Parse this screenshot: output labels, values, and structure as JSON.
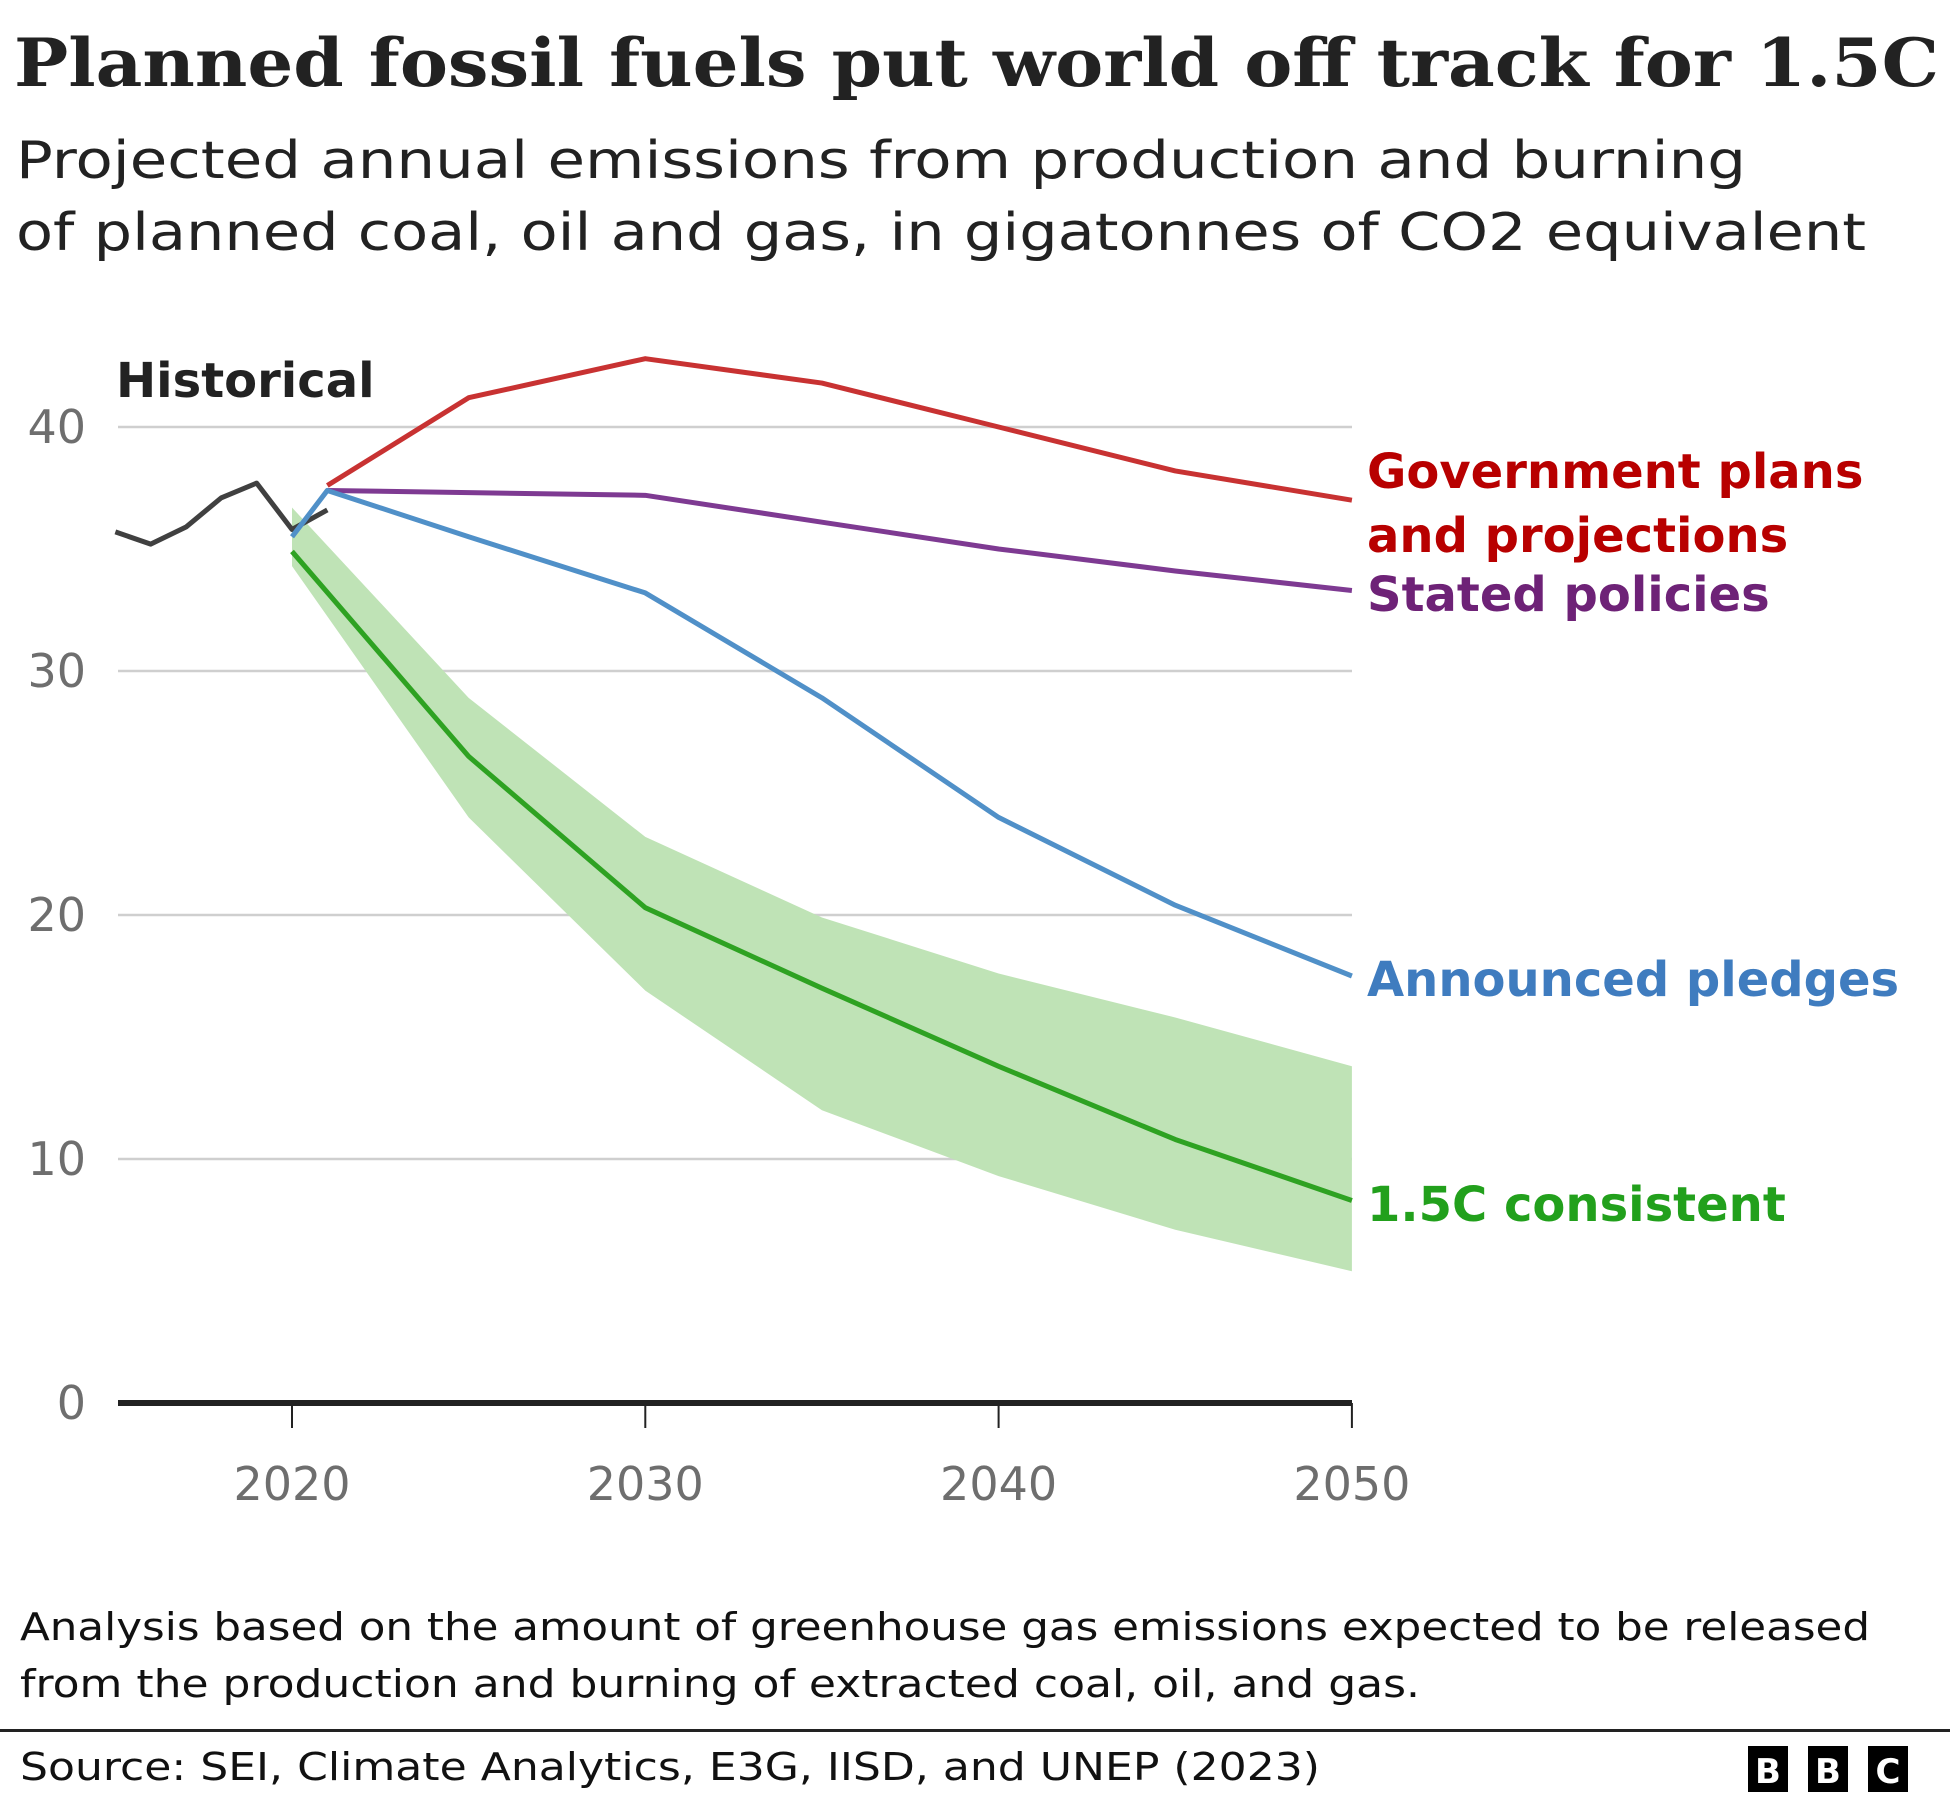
{
  "chart_data": {
    "type": "line",
    "title": "Planned fossil fuels put world off track for 1.5C",
    "subtitle": [
      "Projected annual emissions from production and burning",
      "of planned coal, oil and gas, in gigatonnes of CO2 equivalent"
    ],
    "xlabel": "",
    "ylabel": "",
    "xlim": [
      2015,
      2050
    ],
    "ylim": [
      0,
      43
    ],
    "xticks": [
      "2020",
      "2030",
      "2040",
      "2050"
    ],
    "yticks": [
      "0",
      "10",
      "20",
      "30",
      "40"
    ],
    "grid": true,
    "historical_label": "Historical",
    "series": [
      {
        "name": "Historical",
        "color": "#404040",
        "x": [
          2015,
          2016,
          2017,
          2018,
          2019,
          2020,
          2021
        ],
        "y": [
          35.7,
          35.2,
          35.9,
          37.1,
          37.7,
          35.8,
          36.6
        ]
      },
      {
        "name": "Government plans and projections",
        "label_lines": [
          "Government plans",
          "and projections"
        ],
        "color": "#c83232",
        "label_color": "#b80000",
        "x": [
          2021,
          2025,
          2030,
          2035,
          2040,
          2045,
          2050
        ],
        "y": [
          37.6,
          41.2,
          42.8,
          41.8,
          40.0,
          38.2,
          37.0
        ]
      },
      {
        "name": "Stated policies",
        "label_lines": [
          "Stated policies"
        ],
        "color": "#7e3a92",
        "label_color": "#6e2277",
        "x": [
          2021,
          2030,
          2035,
          2040,
          2045,
          2050
        ],
        "y": [
          37.4,
          37.2,
          36.1,
          35.0,
          34.1,
          33.3
        ]
      },
      {
        "name": "Announced pledges",
        "label_lines": [
          "Announced pledges"
        ],
        "color": "#5090c8",
        "label_color": "#3f7cbf",
        "x": [
          2020,
          2021,
          2025,
          2030,
          2035,
          2040,
          2045,
          2050
        ],
        "y": [
          35.5,
          37.4,
          35.5,
          33.2,
          28.9,
          24.0,
          20.4,
          17.5
        ]
      },
      {
        "name": "1.5C consistent",
        "label_lines": [
          "1.5C consistent"
        ],
        "color": "#2ea222",
        "label_color": "#22a01c",
        "x": [
          2020,
          2025,
          2030,
          2035,
          2040,
          2045,
          2050
        ],
        "y": [
          34.9,
          26.5,
          20.3,
          17.0,
          13.8,
          10.8,
          8.3
        ],
        "range": {
          "color": "#bfe3b6",
          "upper": [
            36.7,
            28.9,
            23.2,
            19.9,
            17.6,
            15.8,
            13.8
          ],
          "lower": [
            34.3,
            24.0,
            16.9,
            12.0,
            9.3,
            7.1,
            5.4
          ]
        }
      }
    ]
  },
  "footnote": [
    "Analysis based on the amount of greenhouse gas emissions expected to be released",
    "from the production and burning of extracted coal, oil, and gas."
  ],
  "source": "Source: SEI, Climate Analytics, E3G, IISD, and UNEP (2023)",
  "logo": [
    "B",
    "B",
    "C"
  ]
}
